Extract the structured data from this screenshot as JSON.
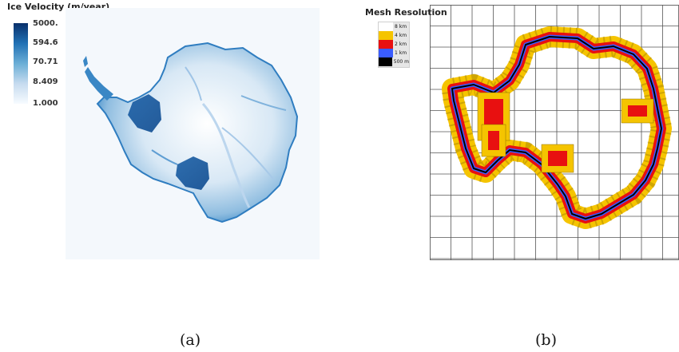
{
  "panel_a": {
    "legend_title": "Ice Velocity (m/year)",
    "colorbar_ticks": [
      "5000.",
      "594.6",
      "70.71",
      "8.409",
      "1.000"
    ],
    "colorbar_colors": [
      "#08306b",
      "#2171b5",
      "#6baed6",
      "#c6dbef",
      "#f7fbff"
    ],
    "caption": "(a)"
  },
  "panel_b": {
    "legend_title": "Mesh Resolution",
    "legend_items": [
      {
        "label": "8 km",
        "color": "#ffffff"
      },
      {
        "label": "4 km",
        "color": "#f5c400"
      },
      {
        "label": "2 km",
        "color": "#e81010"
      },
      {
        "label": "1 km",
        "color": "#3a5cff"
      },
      {
        "label": "500 m",
        "color": "#000000"
      }
    ],
    "caption": "(b)"
  }
}
